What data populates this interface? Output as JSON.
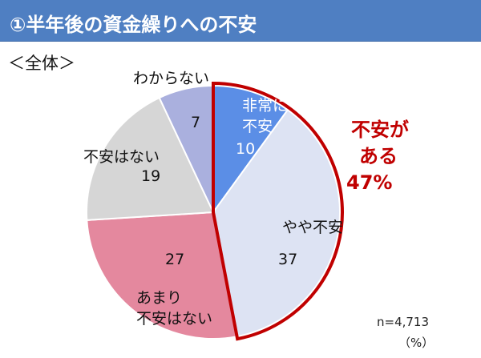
{
  "header": {
    "title": "①半年後の資金繰りへの不安"
  },
  "subtitle": "＜全体＞",
  "callout": {
    "lines": [
      "不安が",
      "ある",
      "47%"
    ],
    "color": "#c00000"
  },
  "note": {
    "n": "n=4,713",
    "unit": "（%）"
  },
  "colors": {
    "header_bg": "#4f7fc2",
    "highlight_border": "#c00000"
  },
  "chart_data": {
    "type": "pie",
    "start": "12 o'clock, clockwise",
    "slices": [
      {
        "label_lines": [
          "非常に",
          "不安"
        ],
        "value": 10,
        "color": "#5b8ee6",
        "text_color": "#ffffff",
        "highlight": true
      },
      {
        "label_lines": [
          "やや不安"
        ],
        "value": 37,
        "color": "#dde3f3",
        "text_color": "#111111",
        "highlight": true
      },
      {
        "label_lines": [
          "あまり",
          "不安はない"
        ],
        "value": 27,
        "color": "#e4889e",
        "text_color": "#111111",
        "highlight": false
      },
      {
        "label_lines": [
          "不安はない"
        ],
        "value": 19,
        "color": "#d6d6d6",
        "text_color": "#111111",
        "highlight": false
      },
      {
        "label_lines": [
          "わからない"
        ],
        "value": 7,
        "color": "#aab0de",
        "text_color": "#111111",
        "highlight": false
      }
    ]
  }
}
